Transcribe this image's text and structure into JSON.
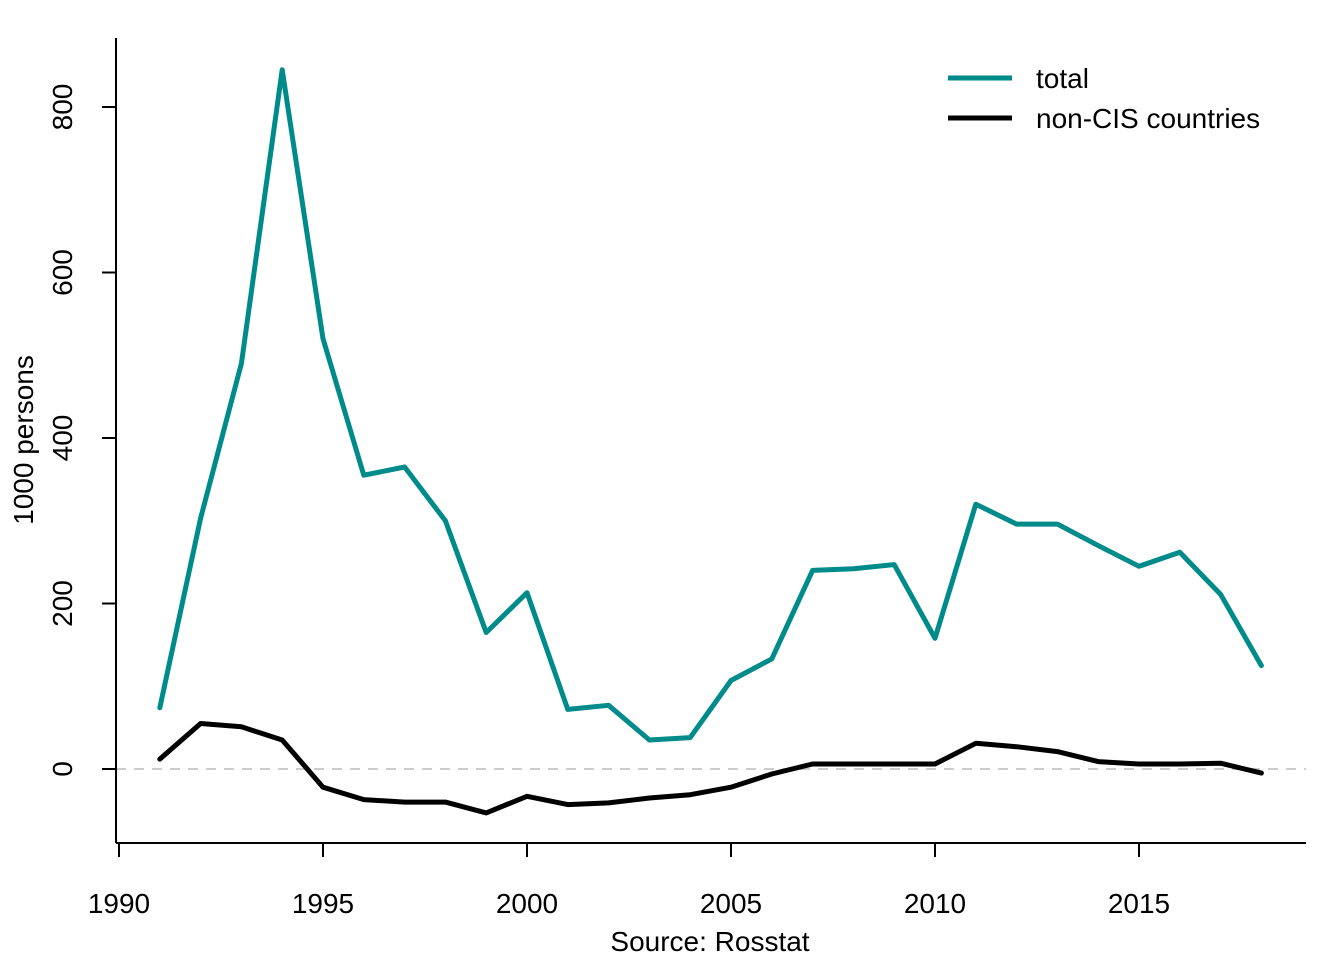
{
  "chart_data": {
    "type": "line",
    "title": "",
    "xlabel": "Source: Rosstat",
    "ylabel": "1000 persons",
    "xlim": [
      1990,
      2019
    ],
    "ylim": [
      -90,
      880
    ],
    "x_ticks": [
      1990,
      1995,
      2000,
      2005,
      2010,
      2015
    ],
    "y_ticks": [
      0,
      200,
      400,
      600,
      800
    ],
    "x": [
      1991,
      1992,
      1993,
      1994,
      1995,
      1996,
      1997,
      1998,
      1999,
      2000,
      2001,
      2002,
      2003,
      2004,
      2005,
      2006,
      2007,
      2008,
      2009,
      2010,
      2011,
      2012,
      2013,
      2014,
      2015,
      2016,
      2017,
      2018
    ],
    "series": [
      {
        "name": "total",
        "color": "#008B8B",
        "values": [
          74,
          303,
          490,
          845,
          520,
          355,
          365,
          300,
          165,
          213,
          72,
          77,
          35,
          38,
          107,
          133,
          240,
          242,
          247,
          158,
          320,
          296,
          296,
          270,
          245,
          262,
          211,
          125
        ]
      },
      {
        "name": "non-CIS countries",
        "color": "#000000",
        "values": [
          12,
          55,
          51,
          35,
          -22,
          -37,
          -40,
          -40,
          -53,
          -33,
          -43,
          -41,
          -35,
          -31,
          -22,
          -6,
          6,
          6,
          6,
          6,
          31,
          27,
          21,
          9,
          6,
          6,
          7,
          -5
        ]
      }
    ],
    "zero_line": true,
    "grid": false,
    "legend": "top-right"
  }
}
